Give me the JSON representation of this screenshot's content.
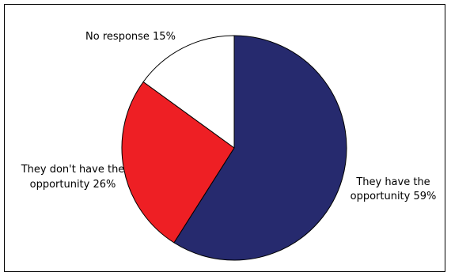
{
  "chart_data": {
    "type": "pie",
    "title": "",
    "slices": [
      {
        "name": "They have the opportunity",
        "value": 59,
        "color": "#262A6E",
        "label_lines": [
          "They have the",
          "opportunity 59%"
        ]
      },
      {
        "name": "They don't have the opportunity",
        "value": 26,
        "color": "#EE1F24",
        "label_lines": [
          "They don't have the",
          "opportunity 26%"
        ]
      },
      {
        "name": "No response",
        "value": 15,
        "color": "#FFFFFF",
        "label_lines": [
          "No response 15%"
        ]
      }
    ],
    "start_angle": "12 o'clock",
    "direction": "clockwise",
    "slice_border_color": "#000000",
    "legend": "none",
    "frame_border": true
  }
}
